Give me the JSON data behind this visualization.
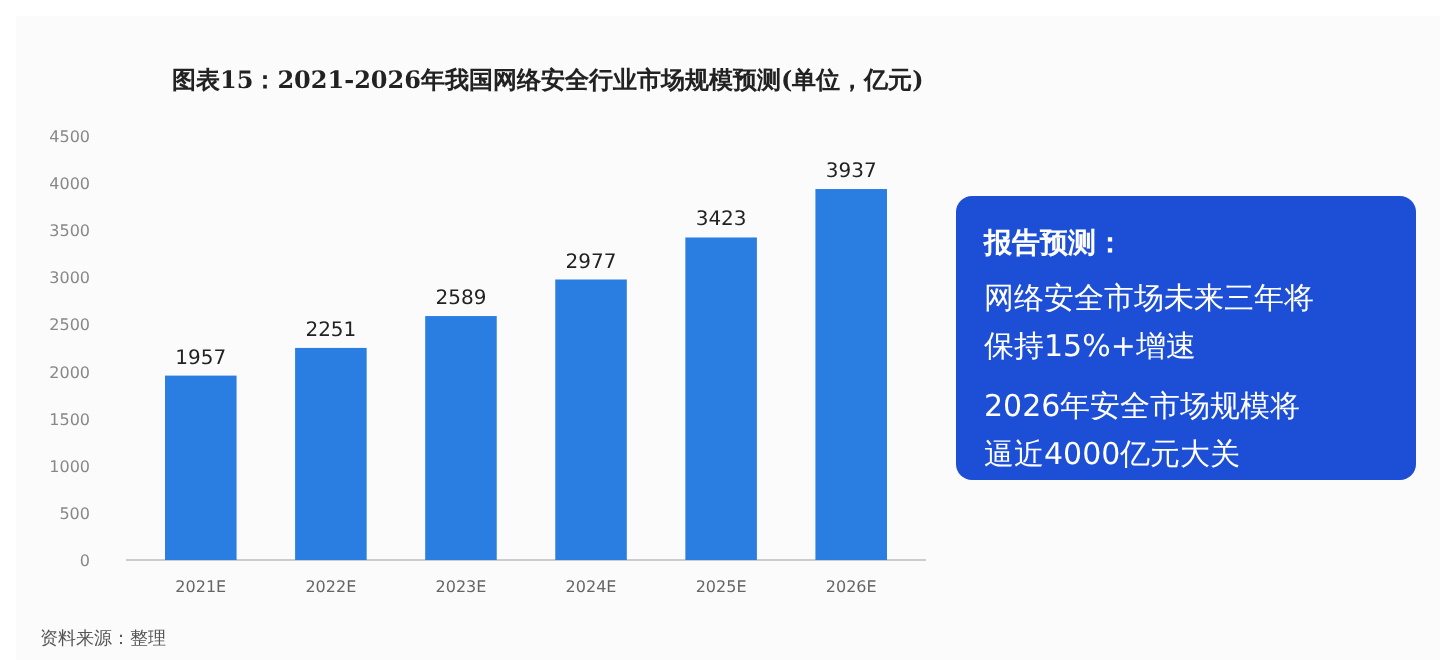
{
  "chart_data": {
    "type": "bar",
    "title": "图表15：2021-2026年我国网络安全行业市场规模预测(单位，亿元)",
    "categories": [
      "2021E",
      "2022E",
      "2023E",
      "2024E",
      "2025E",
      "2026E"
    ],
    "values": [
      1957,
      2251,
      2589,
      2977,
      3423,
      3937
    ],
    "color": "#2a7de1",
    "data_labels": true,
    "ylim": [
      0,
      4500
    ],
    "yticks": [
      0,
      500,
      1000,
      1500,
      2000,
      2500,
      3000,
      3500,
      4000,
      4500
    ],
    "grid": false,
    "annotations": [
      "报告预测：",
      "网络安全市场未来三年将",
      "保持15%+增速",
      "2026年安全市场规模将",
      "逼近4000亿元大关",
      "资料来源：整理"
    ]
  }
}
